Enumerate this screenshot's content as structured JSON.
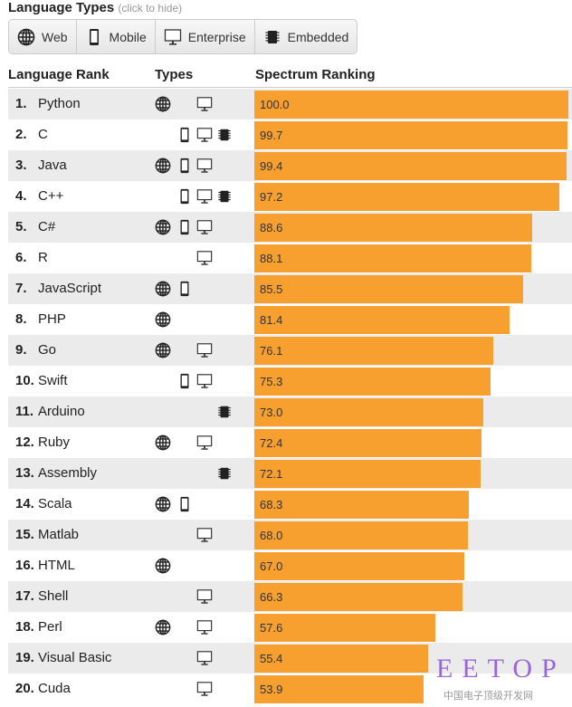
{
  "header": {
    "title": "Language Types",
    "hint": "(click to hide)"
  },
  "filters": [
    {
      "label": "Web",
      "icon": "globe-icon"
    },
    {
      "label": "Mobile",
      "icon": "phone-icon"
    },
    {
      "label": "Enterprise",
      "icon": "monitor-icon"
    },
    {
      "label": "Embedded",
      "icon": "chip-icon"
    }
  ],
  "columns": {
    "rank": "Language Rank",
    "types": "Types",
    "score": "Spectrum Ranking"
  },
  "colors": {
    "bar": "#f7a030",
    "row_alt": "#ebebeb"
  },
  "languages": [
    {
      "rank": "1.",
      "name": "Python",
      "types": [
        "web",
        "enterprise"
      ],
      "score": "100.0"
    },
    {
      "rank": "2.",
      "name": "C",
      "types": [
        "mobile",
        "enterprise",
        "embedded"
      ],
      "score": "99.7"
    },
    {
      "rank": "3.",
      "name": "Java",
      "types": [
        "web",
        "mobile",
        "enterprise"
      ],
      "score": "99.4"
    },
    {
      "rank": "4.",
      "name": "C++",
      "types": [
        "mobile",
        "enterprise",
        "embedded"
      ],
      "score": "97.2"
    },
    {
      "rank": "5.",
      "name": "C#",
      "types": [
        "web",
        "mobile",
        "enterprise"
      ],
      "score": "88.6"
    },
    {
      "rank": "6.",
      "name": "R",
      "types": [
        "enterprise"
      ],
      "score": "88.1"
    },
    {
      "rank": "7.",
      "name": "JavaScript",
      "types": [
        "web",
        "mobile"
      ],
      "score": "85.5"
    },
    {
      "rank": "8.",
      "name": "PHP",
      "types": [
        "web"
      ],
      "score": "81.4"
    },
    {
      "rank": "9.",
      "name": "Go",
      "types": [
        "web",
        "enterprise"
      ],
      "score": "76.1"
    },
    {
      "rank": "10.",
      "name": "Swift",
      "types": [
        "mobile",
        "enterprise"
      ],
      "score": "75.3"
    },
    {
      "rank": "11.",
      "name": "Arduino",
      "types": [
        "embedded"
      ],
      "score": "73.0"
    },
    {
      "rank": "12.",
      "name": "Ruby",
      "types": [
        "web",
        "enterprise"
      ],
      "score": "72.4"
    },
    {
      "rank": "13.",
      "name": "Assembly",
      "types": [
        "embedded"
      ],
      "score": "72.1"
    },
    {
      "rank": "14.",
      "name": "Scala",
      "types": [
        "web",
        "mobile"
      ],
      "score": "68.3"
    },
    {
      "rank": "15.",
      "name": "Matlab",
      "types": [
        "enterprise"
      ],
      "score": "68.0"
    },
    {
      "rank": "16.",
      "name": "HTML",
      "types": [
        "web"
      ],
      "score": "67.0"
    },
    {
      "rank": "17.",
      "name": "Shell",
      "types": [
        "enterprise"
      ],
      "score": "66.3"
    },
    {
      "rank": "18.",
      "name": "Perl",
      "types": [
        "web",
        "enterprise"
      ],
      "score": "57.6"
    },
    {
      "rank": "19.",
      "name": "Visual Basic",
      "types": [
        "enterprise"
      ],
      "score": "55.4"
    },
    {
      "rank": "20.",
      "name": "Cuda",
      "types": [
        "enterprise"
      ],
      "score": "53.9"
    }
  ],
  "watermark": {
    "logo": "EETOP",
    "subtitle": "中国电子顶级开发网"
  }
}
